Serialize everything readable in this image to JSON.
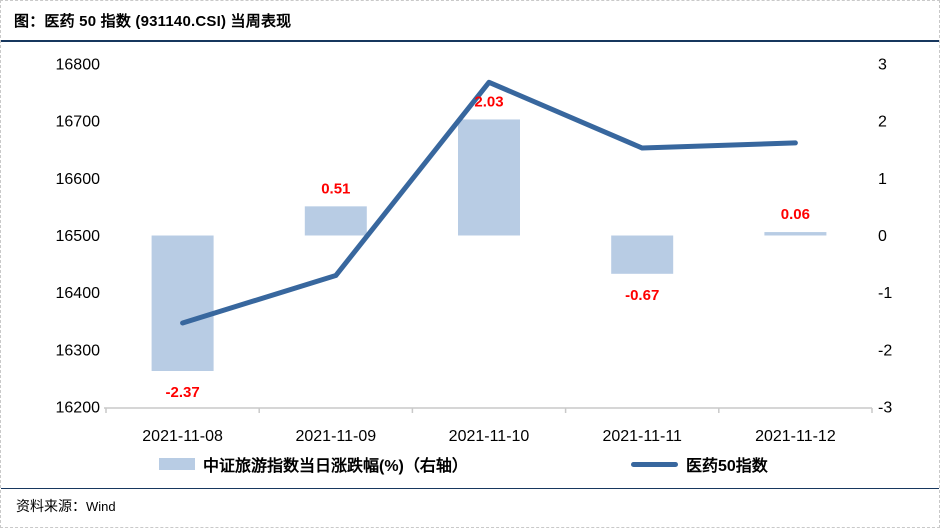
{
  "figure": {
    "title": "图：医药 50 指数 (931140.CSI) 当周表现",
    "source_prefix": "资料来源：",
    "source_name": "Wind"
  },
  "legend": {
    "bar_label": "中证旅游指数当日涨跌幅(%)（右轴）",
    "line_label": "医药50指数"
  },
  "colors": {
    "bar": "#B8CCE4",
    "line": "#38679E",
    "value_label": "#FF0000",
    "rule": "#17375E",
    "axis": "#C9C9C9"
  },
  "chart_data": {
    "type": "bar",
    "subtype": "bar+line combo, dual axis",
    "categories": [
      "2021-11-08",
      "2021-11-09",
      "2021-11-10",
      "2021-11-11",
      "2021-11-12"
    ],
    "series": [
      {
        "name": "中证旅游指数当日涨跌幅(%)（右轴）",
        "type": "bar",
        "axis": "right",
        "values": [
          -2.37,
          0.51,
          2.03,
          -0.67,
          0.06
        ],
        "labels": [
          "-2.37",
          "0.51",
          "2.03",
          "-0.67",
          "0.06"
        ]
      },
      {
        "name": "医药50指数",
        "type": "line",
        "axis": "left",
        "values": [
          16347,
          16430,
          16768,
          16653,
          16662
        ]
      }
    ],
    "left_axis": {
      "min": 16200,
      "max": 16800,
      "step": 100,
      "ticks": [
        "16800",
        "16700",
        "16600",
        "16500",
        "16400",
        "16300",
        "16200"
      ]
    },
    "right_axis": {
      "min": -3,
      "max": 3,
      "step": 1,
      "ticks": [
        "3",
        "2",
        "1",
        "0",
        "-1",
        "-2",
        "-3"
      ]
    },
    "grid": false,
    "legend_position": "bottom"
  }
}
